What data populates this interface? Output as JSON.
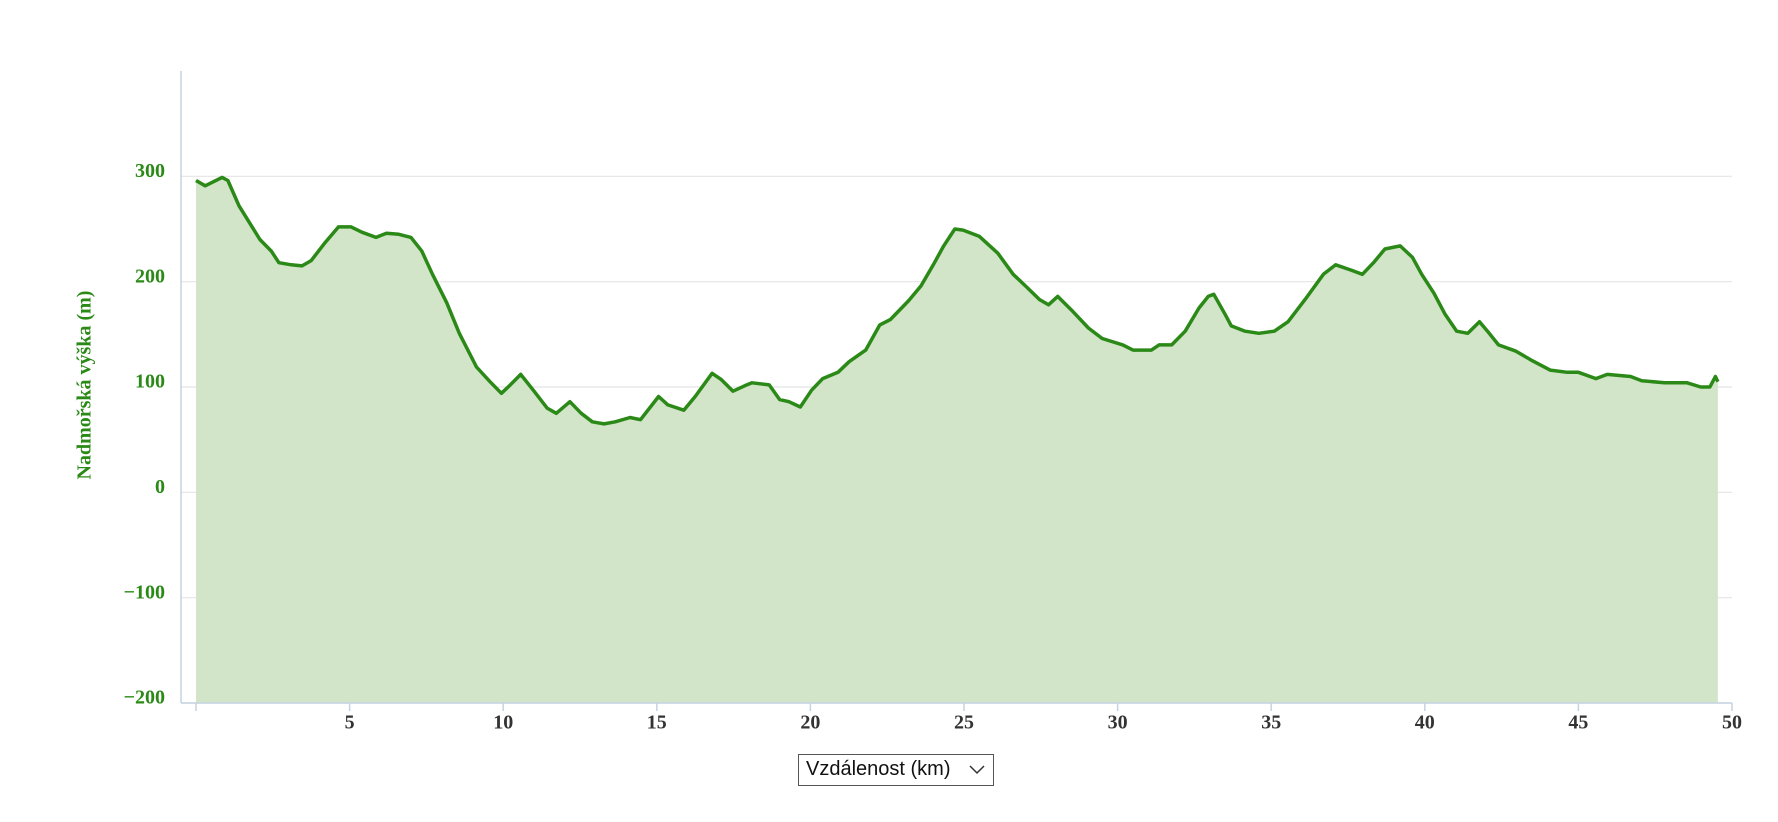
{
  "chart_data": {
    "type": "area",
    "y_label": "Nadmořská výška (m)",
    "x_label": "Vzdálenost (km)",
    "color": "#2b8a17",
    "fill": "#d3e5c9",
    "xlim": [
      0,
      50
    ],
    "ylim": [
      -200,
      400
    ],
    "xticks": [
      5,
      10,
      15,
      20,
      25,
      30,
      35,
      40,
      45,
      50
    ],
    "yticks": [
      {
        "value": -200,
        "label": "−200"
      },
      {
        "value": -100,
        "label": "−100"
      },
      0,
      100,
      200,
      300
    ],
    "grid": true,
    "x": [
      0,
      0.3,
      0.85,
      1.04,
      1.4,
      2.08,
      2.45,
      2.7,
      3.1,
      3.45,
      3.75,
      4.2,
      4.64,
      5.05,
      5.4,
      5.86,
      6.2,
      6.6,
      7.0,
      7.35,
      7.7,
      8.16,
      8.57,
      9.13,
      9.57,
      9.94,
      10.2,
      10.57,
      10.98,
      11.43,
      11.73,
      12.17,
      12.54,
      12.9,
      13.28,
      13.65,
      14.13,
      14.47,
      15.06,
      15.36,
      15.88,
      16.25,
      16.8,
      17.1,
      17.48,
      17.85,
      18.1,
      18.66,
      19.0,
      19.3,
      19.67,
      20.04,
      20.4,
      20.9,
      21.26,
      21.8,
      22.26,
      22.6,
      23.2,
      23.6,
      24.0,
      24.34,
      24.7,
      24.97,
      25.5,
      26.1,
      26.6,
      27.0,
      27.46,
      27.75,
      28.05,
      28.5,
      29.05,
      29.5,
      30.17,
      30.5,
      31.1,
      31.35,
      31.76,
      32.2,
      32.65,
      32.95,
      33.13,
      33.5,
      33.7,
      34.15,
      34.6,
      35.1,
      35.55,
      36.1,
      36.7,
      37.1,
      37.6,
      37.97,
      38.33,
      38.7,
      39.2,
      39.6,
      39.9,
      40.3,
      40.66,
      41.04,
      41.4,
      41.78,
      42.04,
      42.4,
      42.97,
      43.5,
      44.08,
      44.64,
      45.0,
      45.57,
      45.94,
      46.7,
      47.06,
      47.8,
      48.54,
      48.98,
      49.28,
      49.46,
      49.54
    ],
    "values": [
      296,
      291,
      299,
      296,
      272,
      240,
      229,
      218,
      216,
      215,
      220,
      237,
      252,
      252,
      247,
      242,
      246,
      245,
      242,
      229,
      207,
      180,
      151,
      119,
      105,
      94,
      101,
      112,
      97,
      80,
      75,
      86,
      75,
      67,
      65,
      67,
      71,
      69,
      91,
      83,
      78,
      91,
      113,
      107,
      96,
      101,
      104,
      102,
      88,
      86,
      81,
      97,
      108,
      114,
      124,
      135,
      159,
      164,
      182,
      196,
      216,
      234,
      250,
      249,
      243,
      227,
      207,
      196,
      183,
      178,
      186,
      173,
      156,
      146,
      140,
      135,
      135,
      140,
      140,
      153,
      175,
      186,
      188,
      169,
      158,
      153,
      151,
      153,
      162,
      183,
      207,
      216,
      211,
      207,
      218,
      231,
      234,
      223,
      207,
      189,
      169,
      153,
      151,
      162,
      153,
      140,
      134,
      125,
      116,
      114,
      114,
      108,
      112,
      110,
      106,
      104,
      104,
      100,
      100,
      110,
      105
    ]
  }
}
